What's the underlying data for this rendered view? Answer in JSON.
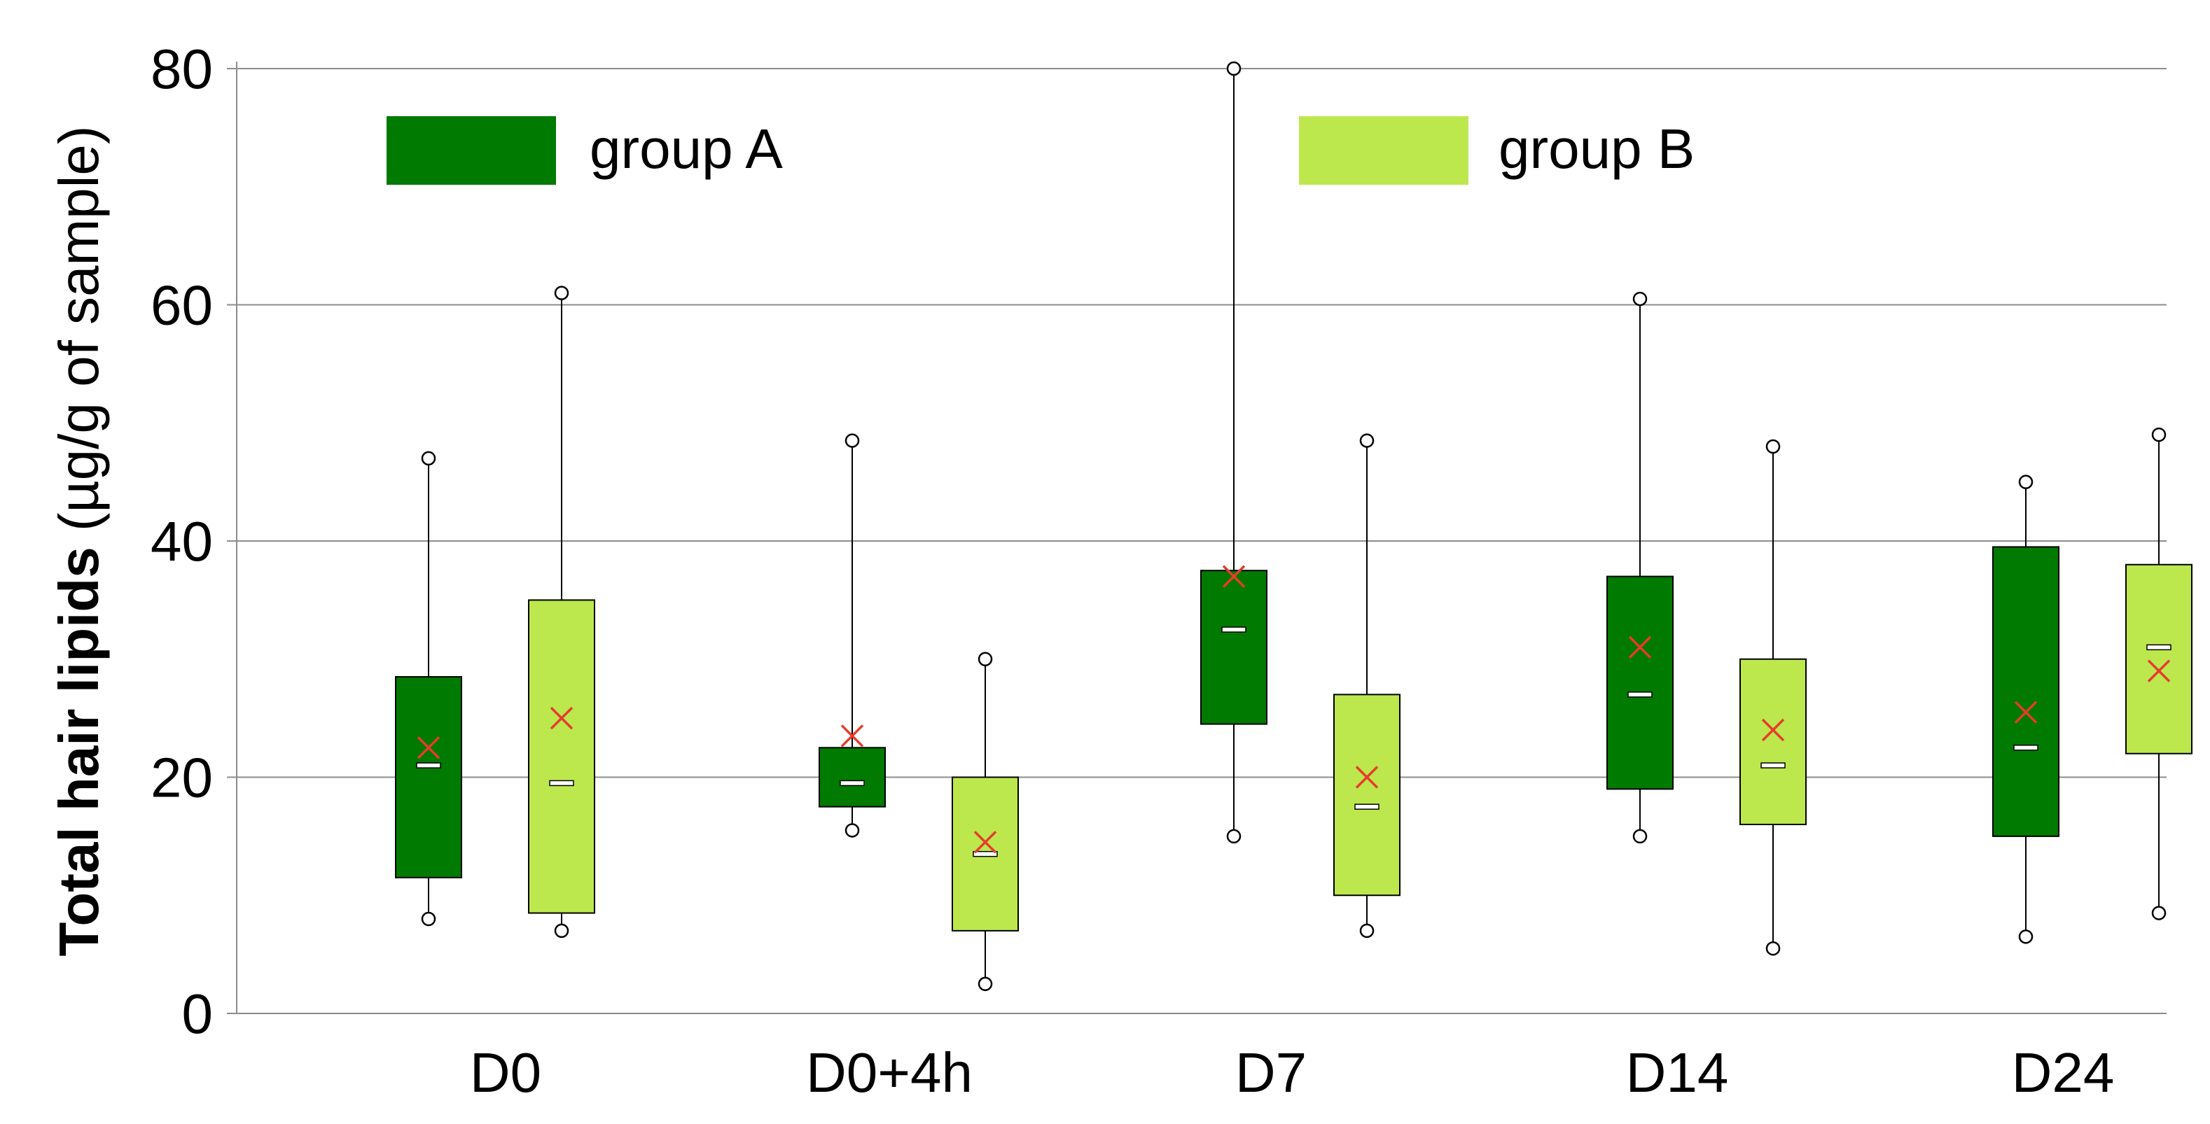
{
  "chart_data": {
    "type": "box",
    "title": "",
    "xlabel": "",
    "ylabel_bold": "Total hair lipids",
    "ylabel_rest": " (µg/g of sample)",
    "ylim": [
      0,
      80
    ],
    "yticks": [
      "0",
      "20",
      "40",
      "60",
      "80"
    ],
    "grid": true,
    "legend_position": "top",
    "categories": [
      "D0",
      "D0+4h",
      "D7",
      "D14",
      "D24"
    ],
    "series": [
      {
        "name": "group A",
        "color": "#007a00",
        "boxes": [
          {
            "min": 8,
            "q1": 11.5,
            "median": 21,
            "mean": 22.5,
            "q3": 28.5,
            "max": 47
          },
          {
            "min": 15.5,
            "q1": 17.5,
            "median": 19.5,
            "mean": 23.5,
            "q3": 22.5,
            "max": 48.5
          },
          {
            "min": 15,
            "q1": 24.5,
            "median": 32.5,
            "mean": 37,
            "q3": 37.5,
            "max": 80
          },
          {
            "min": 15,
            "q1": 19,
            "median": 27,
            "mean": 31,
            "q3": 37,
            "max": 60.5
          },
          {
            "min": 6.5,
            "q1": 15,
            "median": 22.5,
            "mean": 25.5,
            "q3": 39.5,
            "max": 45
          }
        ]
      },
      {
        "name": "group B",
        "color": "#bce84e",
        "boxes": [
          {
            "min": 7,
            "q1": 8.5,
            "median": 19.5,
            "mean": 25,
            "q3": 35,
            "max": 61
          },
          {
            "min": 2.5,
            "q1": 7,
            "median": 13.5,
            "mean": 14.5,
            "q3": 20,
            "max": 30
          },
          {
            "min": 7,
            "q1": 10,
            "median": 17.5,
            "mean": 20,
            "q3": 27,
            "max": 48.5
          },
          {
            "min": 5.5,
            "q1": 16,
            "median": 21,
            "mean": 24,
            "q3": 30,
            "max": 48
          },
          {
            "min": 8.5,
            "q1": 22,
            "median": 31,
            "mean": 29,
            "q3": 38,
            "max": 49
          }
        ]
      }
    ],
    "mean_marker_color": "#e53c2c"
  }
}
